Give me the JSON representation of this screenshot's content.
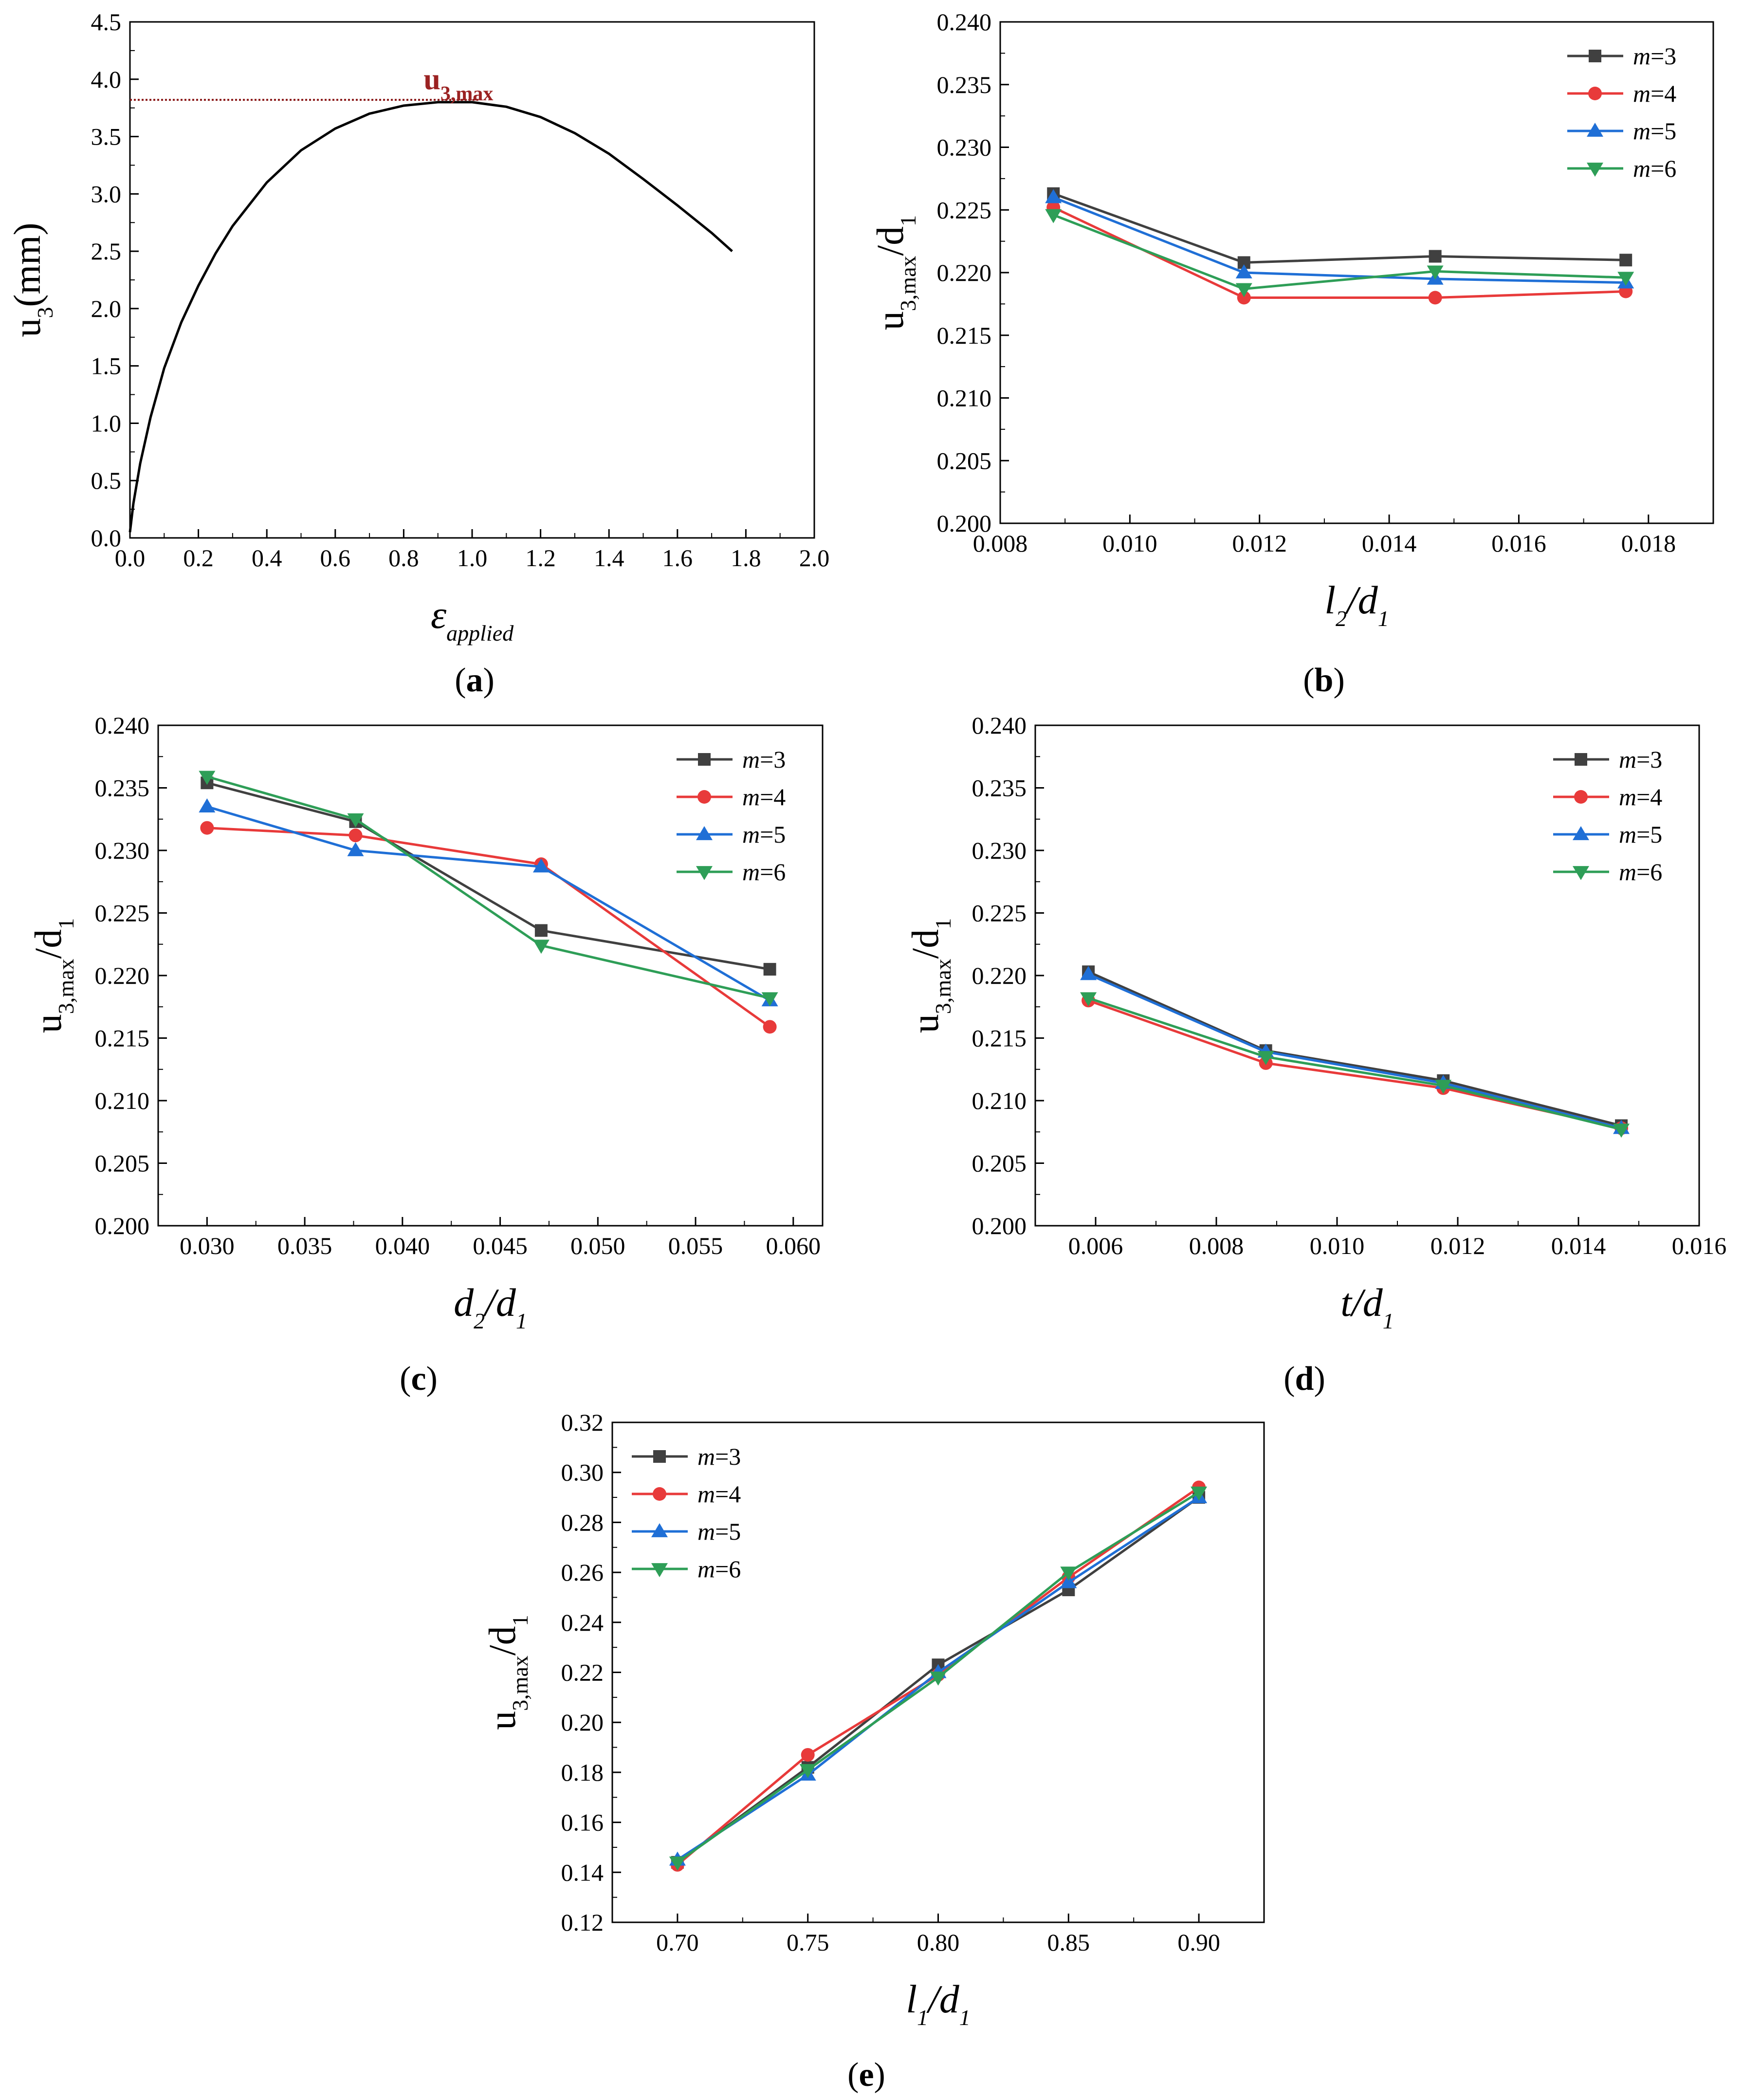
{
  "colors": {
    "m3": "#404040",
    "m4": "#e83a3a",
    "m5": "#1f6fd6",
    "m6": "#2e9e57",
    "curve": "#000000",
    "max_line": "#8b1a1a",
    "max_label": "#9b2222"
  },
  "chart_data": [
    {
      "id": "a",
      "type": "line",
      "panel_label": "(a)",
      "xlabel": "εapplied",
      "ylabel": "u3(mm)",
      "xlim": [
        0.0,
        2.0
      ],
      "ylim": [
        0.0,
        4.5
      ],
      "xticks": [
        "0.0",
        "0.2",
        "0.4",
        "0.6",
        "0.8",
        "1.0",
        "1.2",
        "1.4",
        "1.6",
        "1.8",
        "2.0"
      ],
      "yticks": [
        "0.0",
        "0.5",
        "1.0",
        "1.5",
        "2.0",
        "2.5",
        "3.0",
        "3.5",
        "4.0",
        "4.5"
      ],
      "annotation": "u3,max",
      "max_line_y": 3.82,
      "max_line_x": [
        0.0,
        1.02
      ],
      "curve": {
        "x": [
          0.0,
          0.01,
          0.03,
          0.06,
          0.1,
          0.15,
          0.2,
          0.25,
          0.3,
          0.4,
          0.5,
          0.6,
          0.7,
          0.8,
          0.9,
          1.0,
          1.1,
          1.2,
          1.3,
          1.4,
          1.5,
          1.6,
          1.7,
          1.76
        ],
        "y": [
          0.05,
          0.3,
          0.65,
          1.05,
          1.48,
          1.88,
          2.2,
          2.48,
          2.72,
          3.1,
          3.38,
          3.57,
          3.7,
          3.77,
          3.8,
          3.8,
          3.76,
          3.67,
          3.53,
          3.35,
          3.13,
          2.9,
          2.66,
          2.5
        ]
      }
    },
    {
      "id": "b",
      "type": "line",
      "panel_label": "(b)",
      "xlabel": "l2/d1",
      "ylabel": "u3,max/d1",
      "xlim": [
        0.008,
        0.019
      ],
      "ylim": [
        0.2,
        0.24
      ],
      "xticks": [
        "0.008",
        "0.010",
        "0.012",
        "0.014",
        "0.016",
        "0.018"
      ],
      "yticks": [
        "0.200",
        "0.205",
        "0.210",
        "0.215",
        "0.220",
        "0.225",
        "0.230",
        "0.235",
        "0.240"
      ],
      "legend_position": "top-right",
      "x": [
        0.00882,
        0.01176,
        0.01471,
        0.01765
      ],
      "series": [
        {
          "name": "m=3",
          "var": "m",
          "eq": "=3",
          "values": [
            0.2263,
            0.2208,
            0.2213,
            0.221
          ]
        },
        {
          "name": "m=4",
          "var": "m",
          "eq": "=4",
          "values": [
            0.2252,
            0.218,
            0.218,
            0.2185
          ]
        },
        {
          "name": "m=5",
          "var": "m",
          "eq": "=5",
          "values": [
            0.226,
            0.22,
            0.2195,
            0.2192
          ]
        },
        {
          "name": "m=6",
          "var": "m",
          "eq": "=6",
          "values": [
            0.2246,
            0.2187,
            0.2201,
            0.2196
          ]
        }
      ]
    },
    {
      "id": "c",
      "type": "line",
      "panel_label": "(c)",
      "xlabel": "d2/d1",
      "ylabel": "u3,max/d1",
      "xlim": [
        0.0275,
        0.0615
      ],
      "ylim": [
        0.2,
        0.24
      ],
      "xticks": [
        "0.030",
        "0.035",
        "0.040",
        "0.045",
        "0.050",
        "0.055",
        "0.060"
      ],
      "yticks": [
        "0.200",
        "0.205",
        "0.210",
        "0.215",
        "0.220",
        "0.225",
        "0.230",
        "0.235",
        "0.240"
      ],
      "legend_position": "top-right",
      "x": [
        0.03,
        0.0376,
        0.0471,
        0.0588
      ],
      "series": [
        {
          "name": "m=3",
          "var": "m",
          "eq": "=3",
          "values": [
            0.2354,
            0.2323,
            0.2236,
            0.2205
          ]
        },
        {
          "name": "m=4",
          "var": "m",
          "eq": "=4",
          "values": [
            0.2318,
            0.2312,
            0.2289,
            0.2159
          ]
        },
        {
          "name": "m=5",
          "var": "m",
          "eq": "=5",
          "values": [
            0.2335,
            0.23,
            0.2287,
            0.218
          ]
        },
        {
          "name": "m=6",
          "var": "m",
          "eq": "=6",
          "values": [
            0.2359,
            0.2325,
            0.2224,
            0.2182
          ]
        }
      ]
    },
    {
      "id": "d",
      "type": "line",
      "panel_label": "(d)",
      "xlabel": "t/d1",
      "ylabel": "u3,max/d1",
      "xlim": [
        0.005,
        0.016
      ],
      "ylim": [
        0.2,
        0.24
      ],
      "xticks": [
        "0.006",
        "0.008",
        "0.010",
        "0.012",
        "0.014",
        "0.016"
      ],
      "yticks": [
        "0.200",
        "0.205",
        "0.210",
        "0.215",
        "0.220",
        "0.225",
        "0.230",
        "0.235",
        "0.240"
      ],
      "legend_position": "top-right",
      "x": [
        0.00588,
        0.00882,
        0.01176,
        0.01471
      ],
      "series": [
        {
          "name": "m=3",
          "var": "m",
          "eq": "=3",
          "values": [
            0.2203,
            0.214,
            0.2116,
            0.208
          ]
        },
        {
          "name": "m=4",
          "var": "m",
          "eq": "=4",
          "values": [
            0.218,
            0.213,
            0.211,
            0.2078
          ]
        },
        {
          "name": "m=5",
          "var": "m",
          "eq": "=5",
          "values": [
            0.2201,
            0.2139,
            0.2114,
            0.2078
          ]
        },
        {
          "name": "m=6",
          "var": "m",
          "eq": "=6",
          "values": [
            0.2182,
            0.2135,
            0.2112,
            0.2077
          ]
        }
      ]
    },
    {
      "id": "e",
      "type": "line",
      "panel_label": "(e)",
      "xlabel": "l1/d1",
      "ylabel": "u3,max/d1",
      "xlim": [
        0.675,
        0.925
      ],
      "ylim": [
        0.12,
        0.32
      ],
      "xticks": [
        "0.70",
        "0.75",
        "0.80",
        "0.85",
        "0.90"
      ],
      "yticks": [
        "0.12",
        "0.14",
        "0.16",
        "0.18",
        "0.20",
        "0.22",
        "0.24",
        "0.26",
        "0.28",
        "0.30",
        "0.32"
      ],
      "legend_position": "top-left",
      "x": [
        0.7,
        0.75,
        0.8,
        0.85,
        0.9
      ],
      "series": [
        {
          "name": "m=3",
          "var": "m",
          "eq": "=3",
          "values": [
            0.144,
            0.182,
            0.223,
            0.253,
            0.29
          ]
        },
        {
          "name": "m=4",
          "var": "m",
          "eq": "=4",
          "values": [
            0.143,
            0.187,
            0.219,
            0.258,
            0.294
          ]
        },
        {
          "name": "m=5",
          "var": "m",
          "eq": "=5",
          "values": [
            0.145,
            0.179,
            0.22,
            0.256,
            0.29
          ]
        },
        {
          "name": "m=6",
          "var": "m",
          "eq": "=6",
          "values": [
            0.144,
            0.181,
            0.218,
            0.26,
            0.292
          ]
        }
      ]
    }
  ]
}
